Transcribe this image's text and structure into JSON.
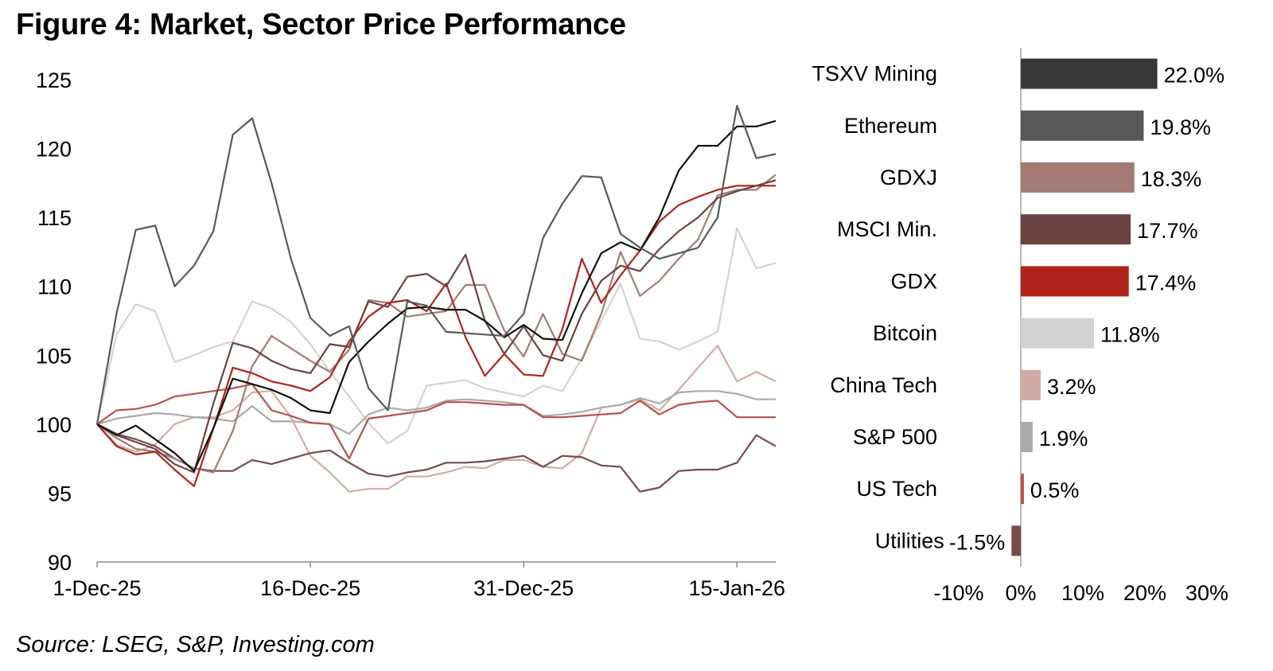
{
  "title": "Figure 4: Market, Sector Price Performance",
  "source": "Source: LSEG, S&P, Investing.com",
  "colors": {
    "tsxv_mining": "#383838",
    "ethereum": "#595959",
    "gdxj": "#a47b74",
    "msci_min": "#6b4341",
    "gdx": "#b0231b",
    "bitcoin": "#d3d3d3",
    "china_tech": "#d4aaa4",
    "sp500": "#aaaaaa",
    "us_tech": "#b9504a",
    "utilities": "#784a4a"
  },
  "chart_data": [
    {
      "type": "line",
      "title": "",
      "xlabel": "",
      "ylabel": "",
      "ylim": [
        90,
        125
      ],
      "yticks": [
        90,
        95,
        100,
        105,
        110,
        115,
        120,
        125
      ],
      "xtick_labels": [
        {
          "index": 0,
          "label": "1-Dec-25"
        },
        {
          "index": 11,
          "label": "16-Dec-25"
        },
        {
          "index": 22,
          "label": "31-Dec-25"
        },
        {
          "index": 33,
          "label": "15-Jan-26"
        }
      ],
      "series": [
        {
          "name": "Bitcoin",
          "color": "#d3d3d3",
          "width": 2.2,
          "values": [
            100,
            106.5,
            108.7,
            108.2,
            104.5,
            105,
            105.6,
            106,
            108.9,
            108.4,
            107.4,
            105.8,
            103.8,
            102,
            100.1,
            98.6,
            99.5,
            102.8,
            103,
            103.2,
            102.6,
            102.3,
            102,
            102.8,
            102.4,
            104.8,
            107.5,
            110.2,
            106.2,
            106,
            105.4,
            106,
            106.7,
            114.2,
            111.3,
            111.7
          ]
        },
        {
          "name": "China Tech",
          "color": "#d4aaa4",
          "width": 2.2,
          "values": [
            100,
            98.5,
            98,
            98.5,
            100,
            100.5,
            100.5,
            101,
            102.3,
            102.4,
            100.5,
            97.7,
            96.5,
            95.1,
            95.3,
            95.3,
            96.2,
            96.2,
            96.5,
            96.9,
            96.8,
            97.4,
            97.4,
            96.9,
            96.8,
            97.9,
            101.2,
            101.4,
            101.8,
            101,
            102.5,
            104.1,
            105.7,
            103.1,
            103.8,
            103.1
          ]
        },
        {
          "name": "S&P 500",
          "color": "#aaaaaa",
          "width": 2.2,
          "values": [
            100,
            100.4,
            100.6,
            100.8,
            100.7,
            100.5,
            100.4,
            100.2,
            101.3,
            100.2,
            100.2,
            100.1,
            100,
            99.3,
            100.7,
            101.2,
            101,
            101.2,
            101.7,
            101.8,
            101.7,
            101.6,
            101.4,
            100.6,
            100.7,
            100.9,
            101.2,
            101.4,
            101.9,
            101.5,
            102.3,
            102.4,
            102.4,
            102.2,
            101.8,
            101.8
          ]
        },
        {
          "name": "US Tech",
          "color": "#b9504a",
          "width": 2.2,
          "values": [
            100,
            101,
            101.1,
            101.4,
            102,
            102.2,
            102.4,
            102.6,
            102.9,
            101,
            100.6,
            100.1,
            100,
            97.5,
            100.4,
            100.6,
            100.8,
            101,
            101.6,
            101.6,
            101.5,
            101.4,
            101.4,
            100.5,
            100.5,
            100.6,
            100.7,
            100.8,
            101.7,
            100.7,
            101.4,
            101.6,
            101.7,
            100.5,
            100.5,
            100.5
          ]
        },
        {
          "name": "Utilities",
          "color": "#784a4a",
          "width": 2.2,
          "values": [
            100,
            99.3,
            98.9,
            98.4,
            97.5,
            96.8,
            96.6,
            96.6,
            97.4,
            97.1,
            97.5,
            97.9,
            98.1,
            97.2,
            96.4,
            96.2,
            96.5,
            96.7,
            97.2,
            97.2,
            97.3,
            97.5,
            97.7,
            96.9,
            97.7,
            97.6,
            97,
            96.9,
            95.1,
            95.4,
            96.6,
            96.7,
            96.7,
            97.2,
            99.2,
            98.4
          ]
        },
        {
          "name": "GDXJ",
          "color": "#a47b74",
          "width": 2.2,
          "values": [
            100,
            99,
            98.2,
            98,
            97.5,
            96.8,
            96.5,
            99.5,
            104.2,
            106.4,
            105.5,
            104.6,
            103.8,
            105.4,
            109,
            108.8,
            107.8,
            108,
            108.2,
            110.1,
            110.1,
            106.8,
            104.9,
            108,
            105.1,
            104.6,
            108,
            112.5,
            109.3,
            110.4,
            112,
            113.4,
            116.6,
            117,
            117,
            118.1
          ]
        },
        {
          "name": "GDX",
          "color": "#b0231b",
          "width": 2.2,
          "values": [
            100,
            98.4,
            97.8,
            98,
            96.7,
            95.5,
            99.7,
            104.1,
            103.7,
            103.1,
            102.8,
            102.4,
            103.4,
            106,
            107.8,
            108.8,
            109,
            108.2,
            110.2,
            106.3,
            103.5,
            105.1,
            103.6,
            103.5,
            106.9,
            112,
            108.8,
            110.8,
            112.6,
            114.7,
            115.9,
            116.5,
            117,
            117.3,
            117.3,
            117.3
          ]
        },
        {
          "name": "MSCI Min.",
          "color": "#6b4341",
          "width": 2.2,
          "values": [
            100,
            99.2,
            98.7,
            98.2,
            97.1,
            96.5,
            101.5,
            105.9,
            105.5,
            104.6,
            104,
            103.7,
            105.8,
            105.6,
            108.9,
            108.5,
            110.7,
            110.9,
            110,
            112.3,
            107.5,
            105.1,
            107.1,
            105,
            104.6,
            108,
            110.4,
            111.5,
            111.1,
            112.7,
            114,
            115,
            116.4,
            116.9,
            117.3,
            117.7
          ]
        },
        {
          "name": "TSXV Mining",
          "color": "#111111",
          "width": 2.2,
          "values": [
            100,
            99.2,
            99.9,
            98.9,
            97.9,
            96.6,
            99.7,
            103.3,
            102.9,
            102.5,
            101.9,
            101,
            100.8,
            104.5,
            106,
            107.3,
            108.4,
            108.5,
            108.3,
            108.3,
            107.5,
            106.3,
            107.2,
            106.2,
            106.1,
            109.5,
            112.4,
            113.2,
            112.6,
            115,
            118.4,
            120.2,
            120.2,
            121.6,
            121.6,
            122
          ]
        },
        {
          "name": "Ethereum",
          "color": "#595959",
          "width": 2.2,
          "values": [
            100,
            108,
            114.1,
            114.4,
            110,
            111.5,
            114,
            121,
            122.2,
            117.5,
            112,
            107.7,
            106.4,
            107.1,
            102.6,
            101,
            108.9,
            108.6,
            106.7,
            106.6,
            106.5,
            106.4,
            108,
            113.5,
            116,
            118,
            117.9,
            113.8,
            112.8,
            112,
            112.4,
            112.8,
            115,
            123.1,
            119.3,
            119.6
          ]
        }
      ]
    },
    {
      "type": "bar",
      "orientation": "horizontal",
      "title": "",
      "xlim": [
        -10,
        30
      ],
      "xticks": [
        -10,
        0,
        10,
        20,
        30
      ],
      "xtick_labels": [
        "-10%",
        "0%",
        "10%",
        "20%",
        "30%"
      ],
      "categories": [
        "TSXV Mining",
        "Ethereum",
        "GDXJ",
        "MSCI Min.",
        "GDX",
        "Bitcoin",
        "China Tech",
        "S&P 500",
        "US Tech",
        "Utilities"
      ],
      "values": [
        22.0,
        19.8,
        18.3,
        17.7,
        17.4,
        11.8,
        3.2,
        1.9,
        0.5,
        -1.5
      ],
      "value_labels": [
        "22.0%",
        "19.8%",
        "18.3%",
        "17.7%",
        "17.4%",
        "11.8%",
        "3.2%",
        "1.9%",
        "0.5%",
        "-1.5%"
      ],
      "bar_colors": [
        "#383838",
        "#595959",
        "#a47b74",
        "#6b4341",
        "#b0231b",
        "#d3d3d3",
        "#d4aaa4",
        "#aaaaaa",
        "#b9504a",
        "#784a4a"
      ]
    }
  ]
}
